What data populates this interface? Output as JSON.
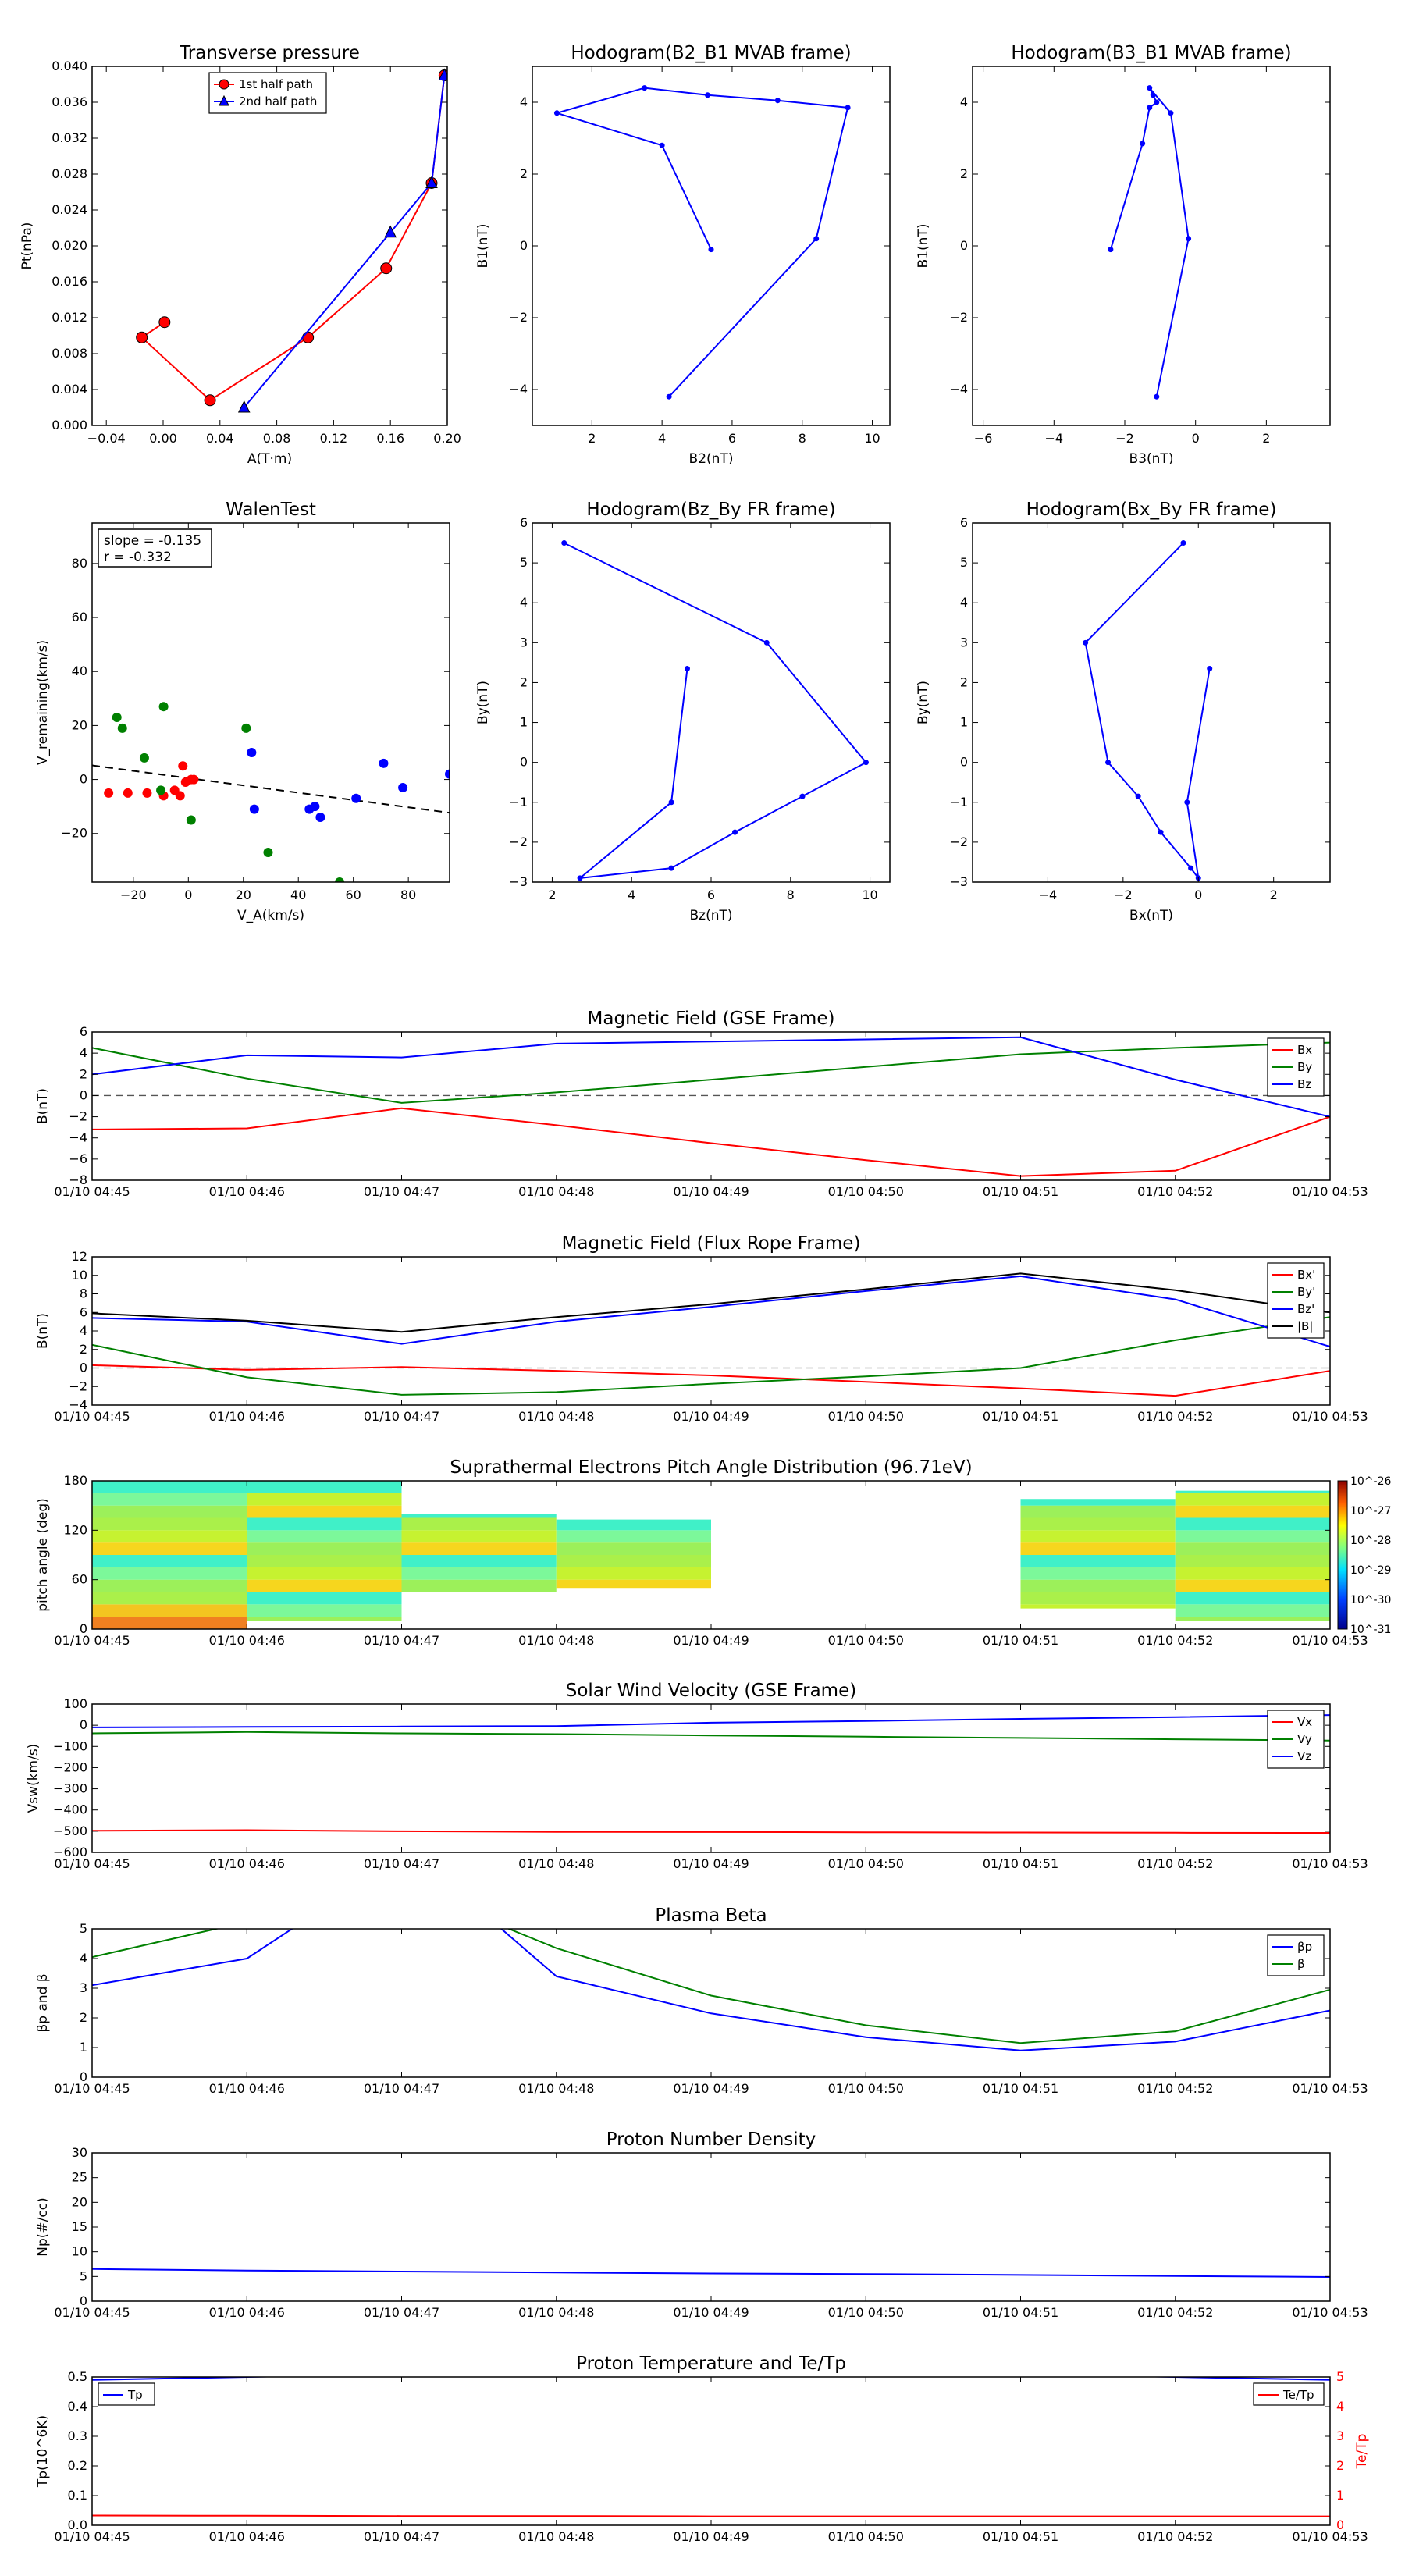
{
  "colors": {
    "red": "#ff0000",
    "green": "#008000",
    "blue": "#0000ff",
    "black": "#000000",
    "dash": "#555555"
  },
  "time_ticks": [
    "01/10 04:45",
    "01/10 04:46",
    "01/10 04:47",
    "01/10 04:48",
    "01/10 04:49",
    "01/10 04:50",
    "01/10 04:51",
    "01/10 04:52",
    "01/10 04:53"
  ],
  "chart_data": [
    {
      "id": "tp",
      "type": "line",
      "title": "Transverse pressure",
      "xlabel": "A(T·m)",
      "ylabel": "Pt(nPa)",
      "xlim": [
        -0.05,
        0.2
      ],
      "ylim": [
        0,
        0.04
      ],
      "xticks": [
        -0.04,
        0.0,
        0.04,
        0.08,
        0.12,
        0.16,
        0.2
      ],
      "xticklabels": [
        "−0.04",
        "0.00",
        "0.04",
        "0.08",
        "0.12",
        "0.16",
        "0.20"
      ],
      "yticks": [
        0.0,
        0.004,
        0.008,
        0.012,
        0.016,
        0.02,
        0.024,
        0.028,
        0.032,
        0.036,
        0.04
      ],
      "yticklabels": [
        "0.000",
        "0.004",
        "0.008",
        "0.012",
        "0.016",
        "0.020",
        "0.024",
        "0.028",
        "0.032",
        "0.036",
        "0.040"
      ],
      "legend": "upper-middle",
      "series": [
        {
          "name": "1st half path",
          "color": "red",
          "marker": "circle",
          "x": [
            0.001,
            -0.015,
            0.033,
            0.102,
            0.157,
            0.189,
            0.198
          ],
          "y": [
            0.0115,
            0.0098,
            0.0028,
            0.0098,
            0.0175,
            0.027,
            0.039
          ]
        },
        {
          "name": "2nd half path",
          "color": "blue",
          "marker": "triangle",
          "x": [
            0.198,
            0.189,
            0.16,
            0.057
          ],
          "y": [
            0.039,
            0.027,
            0.0215,
            0.002
          ]
        }
      ]
    },
    {
      "id": "h21",
      "type": "line",
      "title": "Hodogram(B2_B1 MVAB frame)",
      "xlabel": "B2(nT)",
      "ylabel": "B1(nT)",
      "xlim": [
        0.3,
        10.5
      ],
      "ylim": [
        -5,
        5
      ],
      "xticks": [
        2,
        4,
        6,
        8,
        10
      ],
      "xticklabels": [
        "2",
        "4",
        "6",
        "8",
        "10"
      ],
      "yticks": [
        -4,
        -2,
        0,
        2,
        4
      ],
      "yticklabels": [
        "−4",
        "−2",
        "0",
        "2",
        "4"
      ],
      "series": [
        {
          "color": "blue",
          "marker": "dot",
          "x": [
            5.4,
            4.0,
            1.0,
            3.5,
            5.3,
            7.3,
            9.3,
            8.4,
            4.2
          ],
          "y": [
            -0.1,
            2.8,
            3.7,
            4.4,
            4.2,
            4.05,
            3.85,
            0.2,
            -4.2
          ]
        }
      ]
    },
    {
      "id": "h31",
      "type": "line",
      "title": "Hodogram(B3_B1 MVAB frame)",
      "xlabel": "B3(nT)",
      "ylabel": "B1(nT)",
      "xlim": [
        -6.3,
        3.8
      ],
      "ylim": [
        -5,
        5
      ],
      "xticks": [
        -6,
        -4,
        -2,
        0,
        2
      ],
      "xticklabels": [
        "−6",
        "−4",
        "−2",
        "0",
        "2"
      ],
      "yticks": [
        -4,
        -2,
        0,
        2,
        4
      ],
      "yticklabels": [
        "−4",
        "−2",
        "0",
        "2",
        "4"
      ],
      "series": [
        {
          "color": "blue",
          "marker": "dot",
          "x": [
            -2.4,
            -1.5,
            -1.3,
            -1.1,
            -1.2,
            -1.3,
            -0.7,
            -0.2,
            -1.1
          ],
          "y": [
            -0.1,
            2.85,
            3.85,
            4.0,
            4.2,
            4.4,
            3.7,
            0.2,
            -4.2
          ]
        }
      ]
    },
    {
      "id": "walen",
      "type": "scatter",
      "title": "WalenTest",
      "xlabel": "V_A(km/s)",
      "ylabel": "V_remaining(km/s)",
      "xlim": [
        -35,
        95
      ],
      "ylim": [
        -38,
        95
      ],
      "xticks": [
        -20,
        0,
        20,
        40,
        60,
        80
      ],
      "xticklabels": [
        "−20",
        "0",
        "20",
        "40",
        "60",
        "80"
      ],
      "yticks": [
        -20,
        0,
        20,
        40,
        60,
        80
      ],
      "yticklabels": [
        "−20",
        "0",
        "20",
        "40",
        "60",
        "80"
      ],
      "annotation": [
        "slope = -0.135",
        "r = -0.332"
      ],
      "fit": {
        "slope": -0.135,
        "intercept": 0.5
      },
      "series": [
        {
          "color": "red",
          "x": [
            -29,
            -22,
            -15,
            -9,
            -5,
            -3,
            -1,
            1,
            2,
            -2
          ],
          "y": [
            -5,
            -5,
            -5,
            -6,
            -4,
            -6,
            -1,
            0,
            0,
            5
          ]
        },
        {
          "color": "green",
          "x": [
            -26,
            -24,
            -16,
            -9,
            -10,
            1,
            21,
            29,
            55
          ],
          "y": [
            23,
            19,
            8,
            27,
            -4,
            -15,
            19,
            -27,
            -38
          ]
        },
        {
          "color": "blue",
          "x": [
            23,
            24,
            44,
            46,
            48,
            61,
            71,
            78,
            95
          ],
          "y": [
            10,
            -11,
            -11,
            -10,
            -14,
            -7,
            6,
            -3,
            2
          ]
        }
      ]
    },
    {
      "id": "hzy",
      "type": "line",
      "title": "Hodogram(Bz_By FR frame)",
      "xlabel": "Bz(nT)",
      "ylabel": "By(nT)",
      "xlim": [
        1.5,
        10.5
      ],
      "ylim": [
        -3,
        6
      ],
      "xticks": [
        2,
        4,
        6,
        8,
        10
      ],
      "xticklabels": [
        "2",
        "4",
        "6",
        "8",
        "10"
      ],
      "yticks": [
        -3,
        -2,
        -1,
        0,
        1,
        2,
        3,
        4,
        5,
        6
      ],
      "yticklabels": [
        "−3",
        "−2",
        "−1",
        "0",
        "1",
        "2",
        "3",
        "4",
        "5",
        "6"
      ],
      "series": [
        {
          "color": "blue",
          "marker": "dot",
          "x": [
            5.4,
            5.0,
            2.7,
            5.0,
            6.6,
            8.3,
            9.9,
            7.4,
            2.3
          ],
          "y": [
            2.35,
            -1.0,
            -2.9,
            -2.65,
            -1.75,
            -0.85,
            0.0,
            3.0,
            5.5
          ]
        }
      ]
    },
    {
      "id": "hxy",
      "type": "line",
      "title": "Hodogram(Bx_By FR frame)",
      "xlabel": "Bx(nT)",
      "ylabel": "By(nT)",
      "xlim": [
        -6,
        3.5
      ],
      "ylim": [
        -3,
        6
      ],
      "xticks": [
        -4,
        -2,
        0,
        2
      ],
      "xticklabels": [
        "−4",
        "−2",
        "0",
        "2"
      ],
      "yticks": [
        -3,
        -2,
        -1,
        0,
        1,
        2,
        3,
        4,
        5,
        6
      ],
      "yticklabels": [
        "−3",
        "−2",
        "−1",
        "0",
        "1",
        "2",
        "3",
        "4",
        "5",
        "6"
      ],
      "series": [
        {
          "color": "blue",
          "marker": "dot",
          "x": [
            0.3,
            -0.3,
            0.0,
            -0.2,
            -1.0,
            -1.6,
            -2.4,
            -3.0,
            -0.4
          ],
          "y": [
            2.35,
            -1.0,
            -2.9,
            -2.65,
            -1.75,
            -0.85,
            0.0,
            3.0,
            5.5
          ]
        }
      ]
    },
    {
      "id": "bgse",
      "type": "line",
      "title": "Magnetic Field (GSE Frame)",
      "ylabel": "B(nT)",
      "xlim": [
        0,
        8
      ],
      "ylim": [
        -8,
        6
      ],
      "yticks": [
        -8,
        -6,
        -4,
        -2,
        0,
        2,
        4,
        6
      ],
      "yticklabels": [
        "−8",
        "−6",
        "−4",
        "−2",
        "0",
        "2",
        "4",
        "6"
      ],
      "zero_line": true,
      "series": [
        {
          "name": "Bx",
          "color": "red",
          "x": [
            0,
            1,
            2,
            3,
            4,
            5,
            6,
            7,
            8
          ],
          "y": [
            -3.2,
            -3.1,
            -1.2,
            -2.8,
            -4.5,
            -6.1,
            -7.6,
            -7.1,
            -2.0
          ]
        },
        {
          "name": "By",
          "color": "green",
          "x": [
            0,
            1,
            2,
            3,
            4,
            5,
            6,
            7,
            8
          ],
          "y": [
            4.5,
            1.6,
            -0.7,
            0.3,
            1.5,
            2.7,
            3.9,
            4.5,
            5.0
          ]
        },
        {
          "name": "Bz",
          "color": "blue",
          "x": [
            0,
            1,
            2,
            3,
            4,
            5,
            6,
            7,
            8
          ],
          "y": [
            2.0,
            3.8,
            3.6,
            4.9,
            5.1,
            5.3,
            5.5,
            1.5,
            -2.0
          ]
        }
      ]
    },
    {
      "id": "bfr",
      "type": "line",
      "title": "Magnetic Field (Flux Rope Frame)",
      "ylabel": "B(nT)",
      "xlim": [
        0,
        8
      ],
      "ylim": [
        -4,
        12
      ],
      "yticks": [
        -4,
        -2,
        0,
        2,
        4,
        6,
        8,
        10,
        12
      ],
      "yticklabels": [
        "−4",
        "−2",
        "0",
        "2",
        "4",
        "6",
        "8",
        "10",
        "12"
      ],
      "zero_line": true,
      "series": [
        {
          "name": "Bx'",
          "color": "red",
          "x": [
            0,
            1,
            2,
            3,
            4,
            5,
            6,
            7,
            8
          ],
          "y": [
            0.3,
            -0.2,
            0.1,
            -0.3,
            -0.8,
            -1.5,
            -2.2,
            -3.0,
            -0.3
          ]
        },
        {
          "name": "By'",
          "color": "green",
          "x": [
            0,
            1,
            2,
            3,
            4,
            5,
            6,
            7,
            8
          ],
          "y": [
            2.5,
            -1.0,
            -2.9,
            -2.6,
            -1.7,
            -0.9,
            0.0,
            3.0,
            5.5
          ]
        },
        {
          "name": "Bz'",
          "color": "blue",
          "x": [
            0,
            1,
            2,
            3,
            4,
            5,
            6,
            7,
            8
          ],
          "y": [
            5.4,
            5.0,
            2.6,
            5.0,
            6.6,
            8.3,
            9.9,
            7.4,
            2.3
          ]
        },
        {
          "name": "|B|",
          "color": "black",
          "x": [
            0,
            1,
            2,
            3,
            4,
            5,
            6,
            7,
            8
          ],
          "y": [
            5.9,
            5.1,
            3.9,
            5.5,
            6.9,
            8.5,
            10.2,
            8.4,
            6.0
          ]
        }
      ]
    },
    {
      "id": "pad",
      "type": "heatmap",
      "title": "Suprathermal Electrons Pitch Angle Distribution (96.71eV)",
      "ylabel": "pitch angle (deg)",
      "xlim": [
        0,
        8
      ],
      "ylim": [
        0,
        180
      ],
      "yticks": [
        0,
        60,
        120,
        180
      ],
      "yticklabels": [
        "0",
        "60",
        "120",
        "180"
      ],
      "colorbar": {
        "labels": [
          "10^-26",
          "10^-27",
          "10^-28",
          "10^-29",
          "10^-30",
          "10^-31"
        ]
      },
      "columns": [
        {
          "x0": 0,
          "x1": 1,
          "ymax": 180,
          "ymin": 0,
          "hot_low": true
        },
        {
          "x0": 1,
          "x1": 2,
          "ymax": 180,
          "ymin": 10,
          "gap": [
            20,
            30
          ]
        },
        {
          "x0": 2,
          "x1": 3,
          "ymax": 140,
          "ymin": 45
        },
        {
          "x0": 3,
          "x1": 4,
          "ymax": 133,
          "ymin": 50
        },
        {
          "x0": 6,
          "x1": 7,
          "ymax": 158,
          "ymin": 25
        },
        {
          "x0": 7,
          "x1": 8,
          "ymax": 168,
          "ymin": 10,
          "gap": [
            25,
            32
          ]
        }
      ]
    },
    {
      "id": "vsw",
      "type": "line",
      "title": "Solar Wind Velocity (GSE Frame)",
      "ylabel": "Vsw(km/s)",
      "xlim": [
        0,
        8
      ],
      "ylim": [
        -600,
        100
      ],
      "yticks": [
        -600,
        -500,
        -400,
        -300,
        -200,
        -100,
        0,
        100
      ],
      "yticklabels": [
        "−600",
        "−500",
        "−400",
        "−300",
        "−200",
        "−100",
        "0",
        "100"
      ],
      "series": [
        {
          "name": "Vx",
          "color": "red",
          "x": [
            0,
            1,
            2,
            3,
            4,
            5,
            6,
            7,
            8
          ],
          "y": [
            -498,
            -495,
            -500,
            -503,
            -504,
            -505,
            -506,
            -507,
            -508
          ]
        },
        {
          "name": "Vy",
          "color": "green",
          "x": [
            0,
            1,
            2,
            3,
            4,
            5,
            6,
            7,
            8
          ],
          "y": [
            -38,
            -32,
            -38,
            -42,
            -48,
            -54,
            -60,
            -66,
            -72
          ]
        },
        {
          "name": "Vz",
          "color": "blue",
          "x": [
            0,
            1,
            2,
            3,
            4,
            5,
            6,
            7,
            8
          ],
          "y": [
            -10,
            -8,
            -6,
            -4,
            12,
            20,
            30,
            38,
            48
          ]
        }
      ]
    },
    {
      "id": "beta",
      "type": "line",
      "title": "Plasma Beta",
      "ylabel": "βp and β",
      "xlim": [
        0,
        8
      ],
      "ylim": [
        0,
        5
      ],
      "yticks": [
        0,
        1,
        2,
        3,
        4,
        5
      ],
      "yticklabels": [
        "0",
        "1",
        "2",
        "3",
        "4",
        "5"
      ],
      "series": [
        {
          "name": "βp",
          "color": "blue",
          "x": [
            0,
            1,
            1.35,
            2.6,
            3,
            4,
            5,
            6,
            7,
            8
          ],
          "y": [
            3.1,
            4.0,
            5.2,
            5.2,
            3.4,
            2.15,
            1.35,
            0.9,
            1.2,
            2.25
          ]
        },
        {
          "name": "β",
          "color": "green",
          "x": [
            0,
            0.8,
            1,
            2.6,
            3,
            4,
            5,
            6,
            7,
            8
          ],
          "y": [
            4.05,
            5.0,
            5.2,
            5.2,
            4.35,
            2.75,
            1.75,
            1.15,
            1.55,
            2.95
          ]
        }
      ]
    },
    {
      "id": "np",
      "type": "line",
      "title": "Proton Number Density",
      "ylabel": "Np(#/cc)",
      "xlim": [
        0,
        8
      ],
      "ylim": [
        0,
        30
      ],
      "yticks": [
        0,
        5,
        10,
        15,
        20,
        25,
        30
      ],
      "yticklabels": [
        "0",
        "5",
        "10",
        "15",
        "20",
        "25",
        "30"
      ],
      "series": [
        {
          "color": "blue",
          "x": [
            0,
            1,
            2,
            3,
            4,
            5,
            6,
            7,
            8
          ],
          "y": [
            6.5,
            6.2,
            6.0,
            5.8,
            5.6,
            5.5,
            5.3,
            5.1,
            4.9
          ]
        }
      ]
    },
    {
      "id": "tp2",
      "type": "line",
      "title": "Proton Temperature and Te/Tp",
      "ylabel": "Tp(10^6K)",
      "ylabel_right": "Te/Tp",
      "xlim": [
        0,
        8
      ],
      "ylim": [
        0,
        0.5
      ],
      "ylim_right": [
        0,
        5
      ],
      "yticks": [
        0,
        0.1,
        0.2,
        0.3,
        0.4,
        0.5
      ],
      "yticklabels": [
        "0.0",
        "0.1",
        "0.2",
        "0.3",
        "0.4",
        "0.5"
      ],
      "yticks_right": [
        0,
        1,
        2,
        3,
        4,
        5
      ],
      "yticklabels_right": [
        "0",
        "1",
        "2",
        "3",
        "4",
        "5"
      ],
      "series": [
        {
          "name": "Tp",
          "color": "blue",
          "axis": "left",
          "x": [
            0,
            1,
            2,
            3,
            4,
            5,
            6,
            7,
            8
          ],
          "y": [
            0.49,
            0.5,
            0.51,
            0.51,
            0.51,
            0.51,
            0.51,
            0.5,
            0.49
          ]
        },
        {
          "name": "Te/Tp",
          "color": "red",
          "axis": "right",
          "x": [
            0,
            1,
            2,
            3,
            4,
            5,
            6,
            7,
            8
          ],
          "y": [
            0.33,
            0.32,
            0.31,
            0.31,
            0.3,
            0.3,
            0.3,
            0.3,
            0.3
          ]
        }
      ]
    }
  ]
}
